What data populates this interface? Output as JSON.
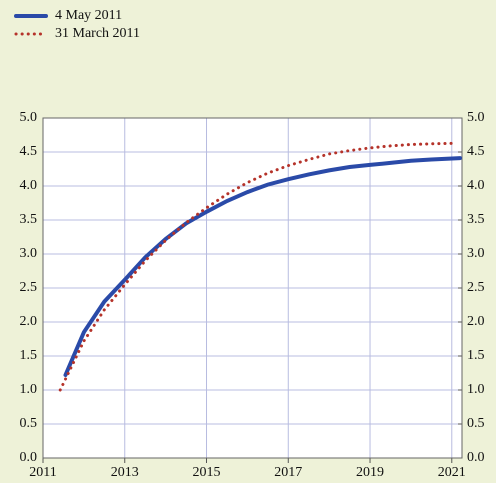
{
  "chart_data": {
    "type": "line",
    "series": [
      {
        "name": "4 May 2011",
        "color": "#2a4aa8",
        "dash": "solid",
        "x": [
          2011.55,
          2012,
          2012.5,
          2013,
          2013.5,
          2014,
          2014.5,
          2015,
          2015.5,
          2016,
          2016.5,
          2017,
          2017.5,
          2018,
          2018.5,
          2019,
          2019.5,
          2020,
          2020.5,
          2021.2
        ],
        "values": [
          1.22,
          1.85,
          2.3,
          2.62,
          2.95,
          3.22,
          3.45,
          3.62,
          3.78,
          3.91,
          4.02,
          4.1,
          4.17,
          4.23,
          4.28,
          4.31,
          4.34,
          4.37,
          4.39,
          4.41
        ]
      },
      {
        "name": "31 March 2011",
        "color": "#b5332a",
        "dash": "dotted",
        "x": [
          2011.42,
          2012,
          2012.5,
          2013,
          2013.5,
          2014,
          2014.5,
          2015,
          2015.5,
          2016,
          2016.5,
          2017,
          2017.5,
          2018,
          2018.5,
          2019,
          2019.5,
          2020,
          2020.5,
          2021.1
        ],
        "values": [
          1.0,
          1.72,
          2.18,
          2.55,
          2.9,
          3.2,
          3.46,
          3.68,
          3.88,
          4.05,
          4.19,
          4.3,
          4.39,
          4.47,
          4.52,
          4.56,
          4.59,
          4.61,
          4.62,
          4.63
        ]
      }
    ],
    "xlim": [
      2011,
      2021.25
    ],
    "xticks": [
      2011,
      2013,
      2015,
      2017,
      2019,
      2021
    ],
    "ylim": [
      0,
      5
    ],
    "yticks": [
      {
        "value": 0,
        "label": "0.0"
      },
      {
        "value": 0.5,
        "label": "0.5"
      },
      {
        "value": 1,
        "label": "1.0"
      },
      {
        "value": 1.5,
        "label": "1.5"
      },
      {
        "value": 2,
        "label": "2.0"
      },
      {
        "value": 2.5,
        "label": "2.5"
      },
      {
        "value": 3,
        "label": "3.0"
      },
      {
        "value": 3.5,
        "label": "3.5"
      },
      {
        "value": 4,
        "label": "4.0"
      },
      {
        "value": 4.5,
        "label": "4.5"
      },
      {
        "value": 5,
        "label": "5.0"
      }
    ],
    "y2lim": [
      0,
      5
    ],
    "y2ticks": [
      {
        "value": 0,
        "label": "0.0"
      },
      {
        "value": 0.5,
        "label": "0.5"
      },
      {
        "value": 1,
        "label": "1.0"
      },
      {
        "value": 1.5,
        "label": "1.5"
      },
      {
        "value": 2,
        "label": "2.0"
      },
      {
        "value": 2.5,
        "label": "2.5"
      },
      {
        "value": 3,
        "label": "3.0"
      },
      {
        "value": 3.5,
        "label": "3.5"
      },
      {
        "value": 4,
        "label": "4.0"
      },
      {
        "value": 4.5,
        "label": "4.5"
      },
      {
        "value": 5,
        "label": "5.0"
      }
    ],
    "grid": true,
    "legend": "top-left"
  }
}
